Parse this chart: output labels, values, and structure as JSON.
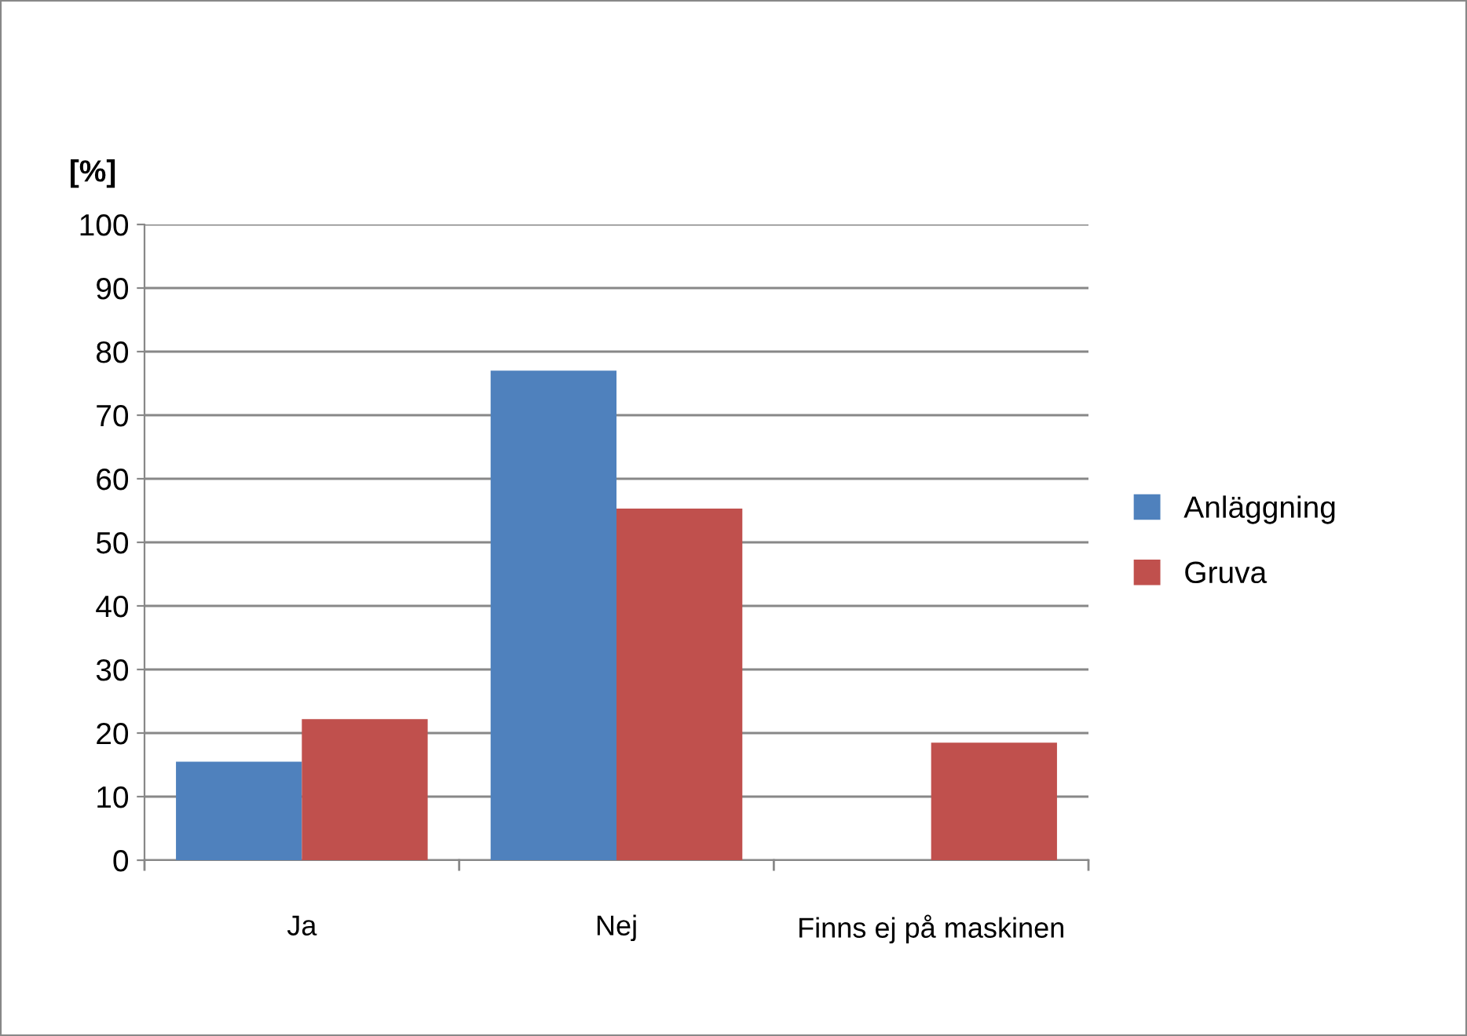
{
  "chart_data": {
    "type": "bar",
    "ylabel": "[%]",
    "categories": [
      "Ja",
      "Nej",
      "Finns ej på maskinen"
    ],
    "series": [
      {
        "name": "Anläggning",
        "color": "#4f81bd",
        "values": [
          15.5,
          77,
          0
        ]
      },
      {
        "name": "Gruva",
        "color": "#c0504d",
        "values": [
          22.2,
          55.3,
          18.5
        ]
      }
    ],
    "ylim": [
      0,
      100
    ],
    "yticks": [
      0,
      10,
      20,
      30,
      40,
      50,
      60,
      70,
      80,
      90,
      100
    ],
    "grid": "y",
    "legend": "right"
  }
}
